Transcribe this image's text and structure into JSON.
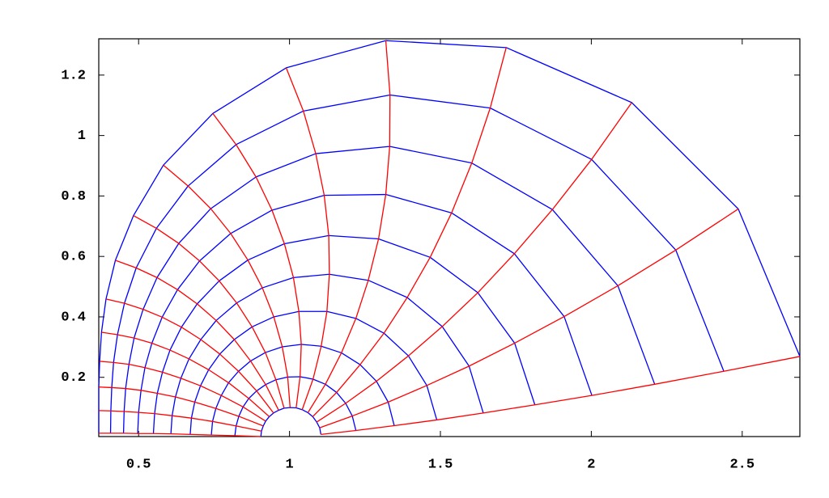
{
  "chart_data": {
    "type": "line",
    "xlim": [
      0.368,
      2.691
    ],
    "ylim": [
      0.004,
      1.32
    ],
    "xticks": [
      0.5,
      1,
      1.5,
      2,
      2.5
    ],
    "yticks": [
      0.2,
      0.4,
      0.6,
      0.8,
      1,
      1.2
    ],
    "series": [
      {
        "color": "#0000ff",
        "x": [
          1.104,
          1.1,
          1.09,
          1.077,
          1.061,
          1.042,
          1.022,
          1.002,
          0.982,
          0.964,
          0.947,
          0.933,
          0.921,
          0.913,
          0.907,
          0.905
        ],
        "values": [
          0.011,
          0.033,
          0.052,
          0.07,
          0.083,
          0.093,
          0.099,
          0.1,
          0.098,
          0.091,
          0.082,
          0.07,
          0.055,
          0.039,
          0.022,
          0.004
        ]
      },
      {
        "color": "#0000ff",
        "x": [
          1.22,
          1.208,
          1.186,
          1.156,
          1.119,
          1.078,
          1.035,
          0.994,
          0.955,
          0.921,
          0.891,
          0.865,
          0.846,
          0.832,
          0.823,
          0.819
        ],
        "values": [
          0.024,
          0.072,
          0.114,
          0.15,
          0.177,
          0.194,
          0.202,
          0.201,
          0.192,
          0.176,
          0.155,
          0.13,
          0.102,
          0.071,
          0.039,
          0.007
        ]
      },
      {
        "color": "#0000ff",
        "x": [
          1.347,
          1.327,
          1.288,
          1.234,
          1.172,
          1.105,
          1.039,
          0.976,
          0.92,
          0.871,
          0.831,
          0.798,
          0.774,
          0.756,
          0.745,
          0.741
        ],
        "values": [
          0.04,
          0.118,
          0.187,
          0.242,
          0.281,
          0.303,
          0.309,
          0.301,
          0.282,
          0.254,
          0.22,
          0.182,
          0.14,
          0.097,
          0.054,
          0.009
        ]
      },
      {
        "color": "#0000ff",
        "x": [
          1.488,
          1.455,
          1.394,
          1.313,
          1.22,
          1.124,
          1.031,
          0.948,
          0.876,
          0.817,
          0.769,
          0.732,
          0.705,
          0.686,
          0.675,
          0.671
        ],
        "values": [
          0.059,
          0.173,
          0.271,
          0.346,
          0.395,
          0.418,
          0.418,
          0.4,
          0.367,
          0.325,
          0.277,
          0.225,
          0.172,
          0.118,
          0.065,
          0.011
        ]
      },
      {
        "color": "#0000ff",
        "x": [
          1.642,
          1.595,
          1.506,
          1.39,
          1.261,
          1.132,
          1.013,
          0.91,
          0.825,
          0.757,
          0.706,
          0.667,
          0.64,
          0.622,
          0.611,
          0.607
        ],
        "values": [
          0.082,
          0.237,
          0.368,
          0.464,
          0.521,
          0.541,
          0.53,
          0.496,
          0.446,
          0.388,
          0.325,
          0.261,
          0.197,
          0.135,
          0.073,
          0.013
        ]
      },
      {
        "color": "#0000ff",
        "x": [
          1.813,
          1.746,
          1.624,
          1.466,
          1.295,
          1.13,
          0.983,
          0.862,
          0.767,
          0.694,
          0.642,
          0.604,
          0.579,
          0.562,
          0.553,
          0.549
        ],
        "values": [
          0.109,
          0.313,
          0.48,
          0.597,
          0.658,
          0.669,
          0.642,
          0.588,
          0.519,
          0.443,
          0.366,
          0.29,
          0.217,
          0.147,
          0.08,
          0.014
        ]
      },
      {
        "color": "#0000ff",
        "x": [
          2.002,
          1.91,
          1.745,
          1.537,
          1.319,
          1.115,
          0.942,
          0.805,
          0.702,
          0.629,
          0.578,
          0.544,
          0.521,
          0.508,
          0.5,
          0.497
        ],
        "values": [
          0.14,
          0.401,
          0.609,
          0.744,
          0.805,
          0.802,
          0.753,
          0.676,
          0.585,
          0.49,
          0.399,
          0.313,
          0.232,
          0.157,
          0.084,
          0.014
        ]
      },
      {
        "color": "#0000ff",
        "x": [
          2.21,
          2.088,
          1.871,
          1.604,
          1.332,
          1.087,
          0.889,
          0.739,
          0.633,
          0.561,
          0.515,
          0.485,
          0.468,
          0.457,
          0.452,
          0.45
        ],
        "values": [
          0.177,
          0.503,
          0.755,
          0.909,
          0.964,
          0.94,
          0.863,
          0.758,
          0.643,
          0.53,
          0.425,
          0.33,
          0.243,
          0.163,
          0.087,
          0.015
        ]
      },
      {
        "color": "#0000ff",
        "x": [
          2.439,
          2.28,
          2.001,
          1.665,
          1.333,
          1.046,
          0.823,
          0.664,
          0.559,
          0.492,
          0.453,
          0.43,
          0.417,
          0.411,
          0.408,
          0.407
        ],
        "values": [
          0.22,
          0.621,
          0.921,
          1.091,
          1.134,
          1.081,
          0.97,
          0.833,
          0.693,
          0.562,
          0.445,
          0.341,
          0.249,
          0.166,
          0.089,
          0.015
        ]
      },
      {
        "color": "#0000ff",
        "x": [
          2.691,
          2.487,
          2.134,
          1.718,
          1.319,
          0.989,
          0.746,
          0.582,
          0.483,
          0.423,
          0.392,
          0.377,
          0.371,
          0.368,
          0.368,
          0.368
        ],
        "values": [
          0.269,
          0.757,
          1.109,
          1.291,
          1.314,
          1.224,
          1.073,
          0.902,
          0.735,
          0.587,
          0.459,
          0.349,
          0.253,
          0.168,
          0.09,
          0.015
        ]
      },
      {
        "color": "#ff0000",
        "x": [
          1.104,
          1.22,
          1.347,
          1.488,
          1.642,
          1.813,
          2.002,
          2.21,
          2.439,
          2.691
        ],
        "values": [
          0.011,
          0.024,
          0.04,
          0.059,
          0.082,
          0.109,
          0.14,
          0.177,
          0.22,
          0.269
        ]
      },
      {
        "color": "#ff0000",
        "x": [
          1.1,
          1.208,
          1.327,
          1.455,
          1.595,
          1.746,
          1.91,
          2.088,
          2.28,
          2.487
        ],
        "values": [
          0.033,
          0.072,
          0.118,
          0.173,
          0.237,
          0.313,
          0.401,
          0.503,
          0.621,
          0.757
        ]
      },
      {
        "color": "#ff0000",
        "x": [
          1.09,
          1.186,
          1.288,
          1.394,
          1.506,
          1.624,
          1.745,
          1.871,
          2.001,
          2.134
        ],
        "values": [
          0.052,
          0.114,
          0.187,
          0.271,
          0.368,
          0.48,
          0.609,
          0.755,
          0.921,
          1.109
        ]
      },
      {
        "color": "#ff0000",
        "x": [
          1.077,
          1.156,
          1.234,
          1.313,
          1.39,
          1.466,
          1.537,
          1.604,
          1.665,
          1.718
        ],
        "values": [
          0.07,
          0.15,
          0.242,
          0.346,
          0.464,
          0.597,
          0.744,
          0.909,
          1.091,
          1.291
        ]
      },
      {
        "color": "#ff0000",
        "x": [
          1.061,
          1.119,
          1.172,
          1.22,
          1.261,
          1.295,
          1.319,
          1.332,
          1.333,
          1.319
        ],
        "values": [
          0.083,
          0.177,
          0.281,
          0.395,
          0.521,
          0.658,
          0.805,
          0.964,
          1.134,
          1.314
        ]
      },
      {
        "color": "#ff0000",
        "x": [
          1.042,
          1.078,
          1.105,
          1.124,
          1.132,
          1.13,
          1.115,
          1.087,
          1.046,
          0.989
        ],
        "values": [
          0.093,
          0.194,
          0.303,
          0.418,
          0.541,
          0.669,
          0.802,
          0.94,
          1.081,
          1.224
        ]
      },
      {
        "color": "#ff0000",
        "x": [
          1.022,
          1.035,
          1.039,
          1.031,
          1.013,
          0.983,
          0.942,
          0.889,
          0.823,
          0.746
        ],
        "values": [
          0.099,
          0.202,
          0.309,
          0.418,
          0.53,
          0.642,
          0.753,
          0.863,
          0.97,
          1.073
        ]
      },
      {
        "color": "#ff0000",
        "x": [
          1.002,
          0.994,
          0.976,
          0.948,
          0.91,
          0.862,
          0.805,
          0.739,
          0.664,
          0.582
        ],
        "values": [
          0.1,
          0.201,
          0.301,
          0.4,
          0.496,
          0.588,
          0.676,
          0.758,
          0.833,
          0.902
        ]
      },
      {
        "color": "#ff0000",
        "x": [
          0.982,
          0.955,
          0.92,
          0.876,
          0.825,
          0.767,
          0.702,
          0.633,
          0.559,
          0.483
        ],
        "values": [
          0.098,
          0.192,
          0.282,
          0.367,
          0.446,
          0.519,
          0.585,
          0.643,
          0.693,
          0.735
        ]
      },
      {
        "color": "#ff0000",
        "x": [
          0.964,
          0.921,
          0.871,
          0.817,
          0.757,
          0.694,
          0.629,
          0.561,
          0.492,
          0.423
        ],
        "values": [
          0.091,
          0.176,
          0.254,
          0.325,
          0.388,
          0.443,
          0.49,
          0.53,
          0.562,
          0.587
        ]
      },
      {
        "color": "#ff0000",
        "x": [
          0.947,
          0.891,
          0.831,
          0.769,
          0.706,
          0.642,
          0.578,
          0.515,
          0.453,
          0.392
        ],
        "values": [
          0.082,
          0.155,
          0.22,
          0.277,
          0.325,
          0.366,
          0.399,
          0.425,
          0.445,
          0.459
        ]
      },
      {
        "color": "#ff0000",
        "x": [
          0.933,
          0.865,
          0.798,
          0.732,
          0.667,
          0.604,
          0.544,
          0.485,
          0.43,
          0.377
        ],
        "values": [
          0.07,
          0.13,
          0.182,
          0.225,
          0.261,
          0.29,
          0.313,
          0.33,
          0.341,
          0.349
        ]
      },
      {
        "color": "#ff0000",
        "x": [
          0.921,
          0.846,
          0.774,
          0.705,
          0.64,
          0.579,
          0.521,
          0.468,
          0.417,
          0.371
        ],
        "values": [
          0.055,
          0.102,
          0.14,
          0.172,
          0.197,
          0.217,
          0.232,
          0.243,
          0.249,
          0.253
        ]
      },
      {
        "color": "#ff0000",
        "x": [
          0.913,
          0.832,
          0.756,
          0.686,
          0.622,
          0.562,
          0.508,
          0.457,
          0.411,
          0.368
        ],
        "values": [
          0.039,
          0.071,
          0.097,
          0.118,
          0.135,
          0.147,
          0.157,
          0.163,
          0.166,
          0.168
        ]
      },
      {
        "color": "#ff0000",
        "x": [
          0.907,
          0.823,
          0.745,
          0.675,
          0.611,
          0.553,
          0.5,
          0.452,
          0.408,
          0.368
        ],
        "values": [
          0.022,
          0.039,
          0.054,
          0.065,
          0.073,
          0.08,
          0.084,
          0.087,
          0.089,
          0.09
        ]
      },
      {
        "color": "#ff0000",
        "x": [
          0.905,
          0.819,
          0.741,
          0.671,
          0.607,
          0.549,
          0.497,
          0.45,
          0.407,
          0.368
        ],
        "values": [
          0.004,
          0.007,
          0.009,
          0.011,
          0.013,
          0.014,
          0.014,
          0.015,
          0.015,
          0.015
        ]
      }
    ]
  }
}
